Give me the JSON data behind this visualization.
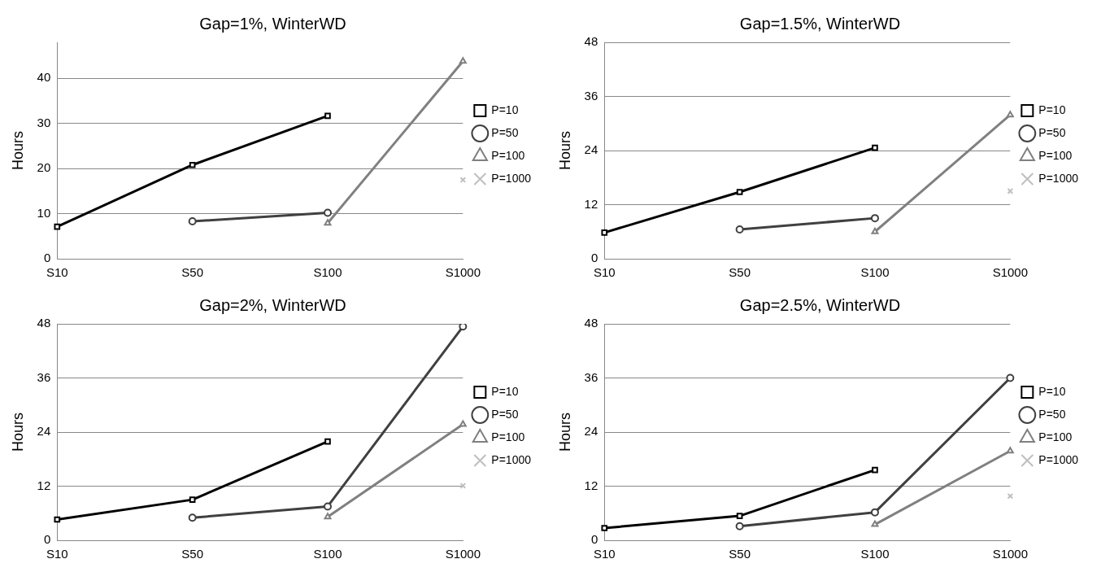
{
  "chart_data": [
    {
      "type": "line",
      "title": "Gap=1%, WinterWD",
      "ylabel": "Hours",
      "categories": [
        "S10",
        "S50",
        "S100",
        "S1000"
      ],
      "ylim": [
        0,
        48
      ],
      "yticks": [
        0,
        10,
        20,
        30,
        40
      ],
      "grid": "y",
      "legend": "right",
      "series": [
        {
          "name": "P=10",
          "color": "#000000",
          "marker": "square",
          "values": [
            7.1,
            20.8,
            31.7,
            null
          ]
        },
        {
          "name": "P=50",
          "color": "#404040",
          "marker": "circle",
          "values": [
            null,
            8.3,
            10.2,
            null
          ]
        },
        {
          "name": "P=100",
          "color": "#808080",
          "marker": "triangle",
          "values": [
            null,
            null,
            7.9,
            43.8
          ]
        },
        {
          "name": "P=1000",
          "color": "#bfbfbf",
          "marker": "cross",
          "values": [
            null,
            null,
            null,
            17.5
          ]
        }
      ]
    },
    {
      "type": "line",
      "title": "Gap=1.5%, WinterWD",
      "ylabel": "Hours",
      "categories": [
        "S10",
        "S50",
        "S100",
        "S1000"
      ],
      "ylim": [
        0,
        48
      ],
      "yticks": [
        0,
        12,
        24,
        36,
        48
      ],
      "grid": "y",
      "legend": "right",
      "series": [
        {
          "name": "P=10",
          "color": "#000000",
          "marker": "square",
          "values": [
            5.8,
            14.8,
            24.6,
            null
          ]
        },
        {
          "name": "P=50",
          "color": "#404040",
          "marker": "circle",
          "values": [
            null,
            6.5,
            9.0,
            null
          ]
        },
        {
          "name": "P=100",
          "color": "#808080",
          "marker": "triangle",
          "values": [
            null,
            null,
            6.0,
            31.9
          ]
        },
        {
          "name": "P=1000",
          "color": "#bfbfbf",
          "marker": "cross",
          "values": [
            null,
            null,
            null,
            15.0
          ]
        }
      ]
    },
    {
      "type": "line",
      "title": "Gap=2%, WinterWD",
      "ylabel": "Hours",
      "categories": [
        "S10",
        "S50",
        "S100",
        "S1000"
      ],
      "ylim": [
        0,
        48
      ],
      "yticks": [
        0,
        12,
        24,
        36,
        48
      ],
      "grid": "y",
      "legend": "right",
      "series": [
        {
          "name": "P=10",
          "color": "#000000",
          "marker": "square",
          "values": [
            4.6,
            9.0,
            21.9,
            null
          ]
        },
        {
          "name": "P=50",
          "color": "#404040",
          "marker": "circle",
          "values": [
            null,
            5.0,
            7.5,
            47.4
          ]
        },
        {
          "name": "P=100",
          "color": "#808080",
          "marker": "triangle",
          "values": [
            null,
            null,
            5.2,
            25.7
          ]
        },
        {
          "name": "P=1000",
          "color": "#bfbfbf",
          "marker": "cross",
          "values": [
            null,
            null,
            null,
            12.1
          ]
        }
      ]
    },
    {
      "type": "line",
      "title": "Gap=2.5%, WinterWD",
      "ylabel": "Hours",
      "categories": [
        "S10",
        "S50",
        "S100",
        "S1000"
      ],
      "ylim": [
        0,
        48
      ],
      "yticks": [
        0,
        12,
        24,
        36,
        48
      ],
      "grid": "y",
      "legend": "right",
      "series": [
        {
          "name": "P=10",
          "color": "#000000",
          "marker": "square",
          "values": [
            2.7,
            5.4,
            15.6,
            null
          ]
        },
        {
          "name": "P=50",
          "color": "#404040",
          "marker": "circle",
          "values": [
            null,
            3.1,
            6.2,
            36.0
          ]
        },
        {
          "name": "P=100",
          "color": "#808080",
          "marker": "triangle",
          "values": [
            null,
            null,
            3.5,
            19.8
          ]
        },
        {
          "name": "P=1000",
          "color": "#bfbfbf",
          "marker": "cross",
          "values": [
            null,
            null,
            null,
            9.8
          ]
        }
      ]
    }
  ]
}
